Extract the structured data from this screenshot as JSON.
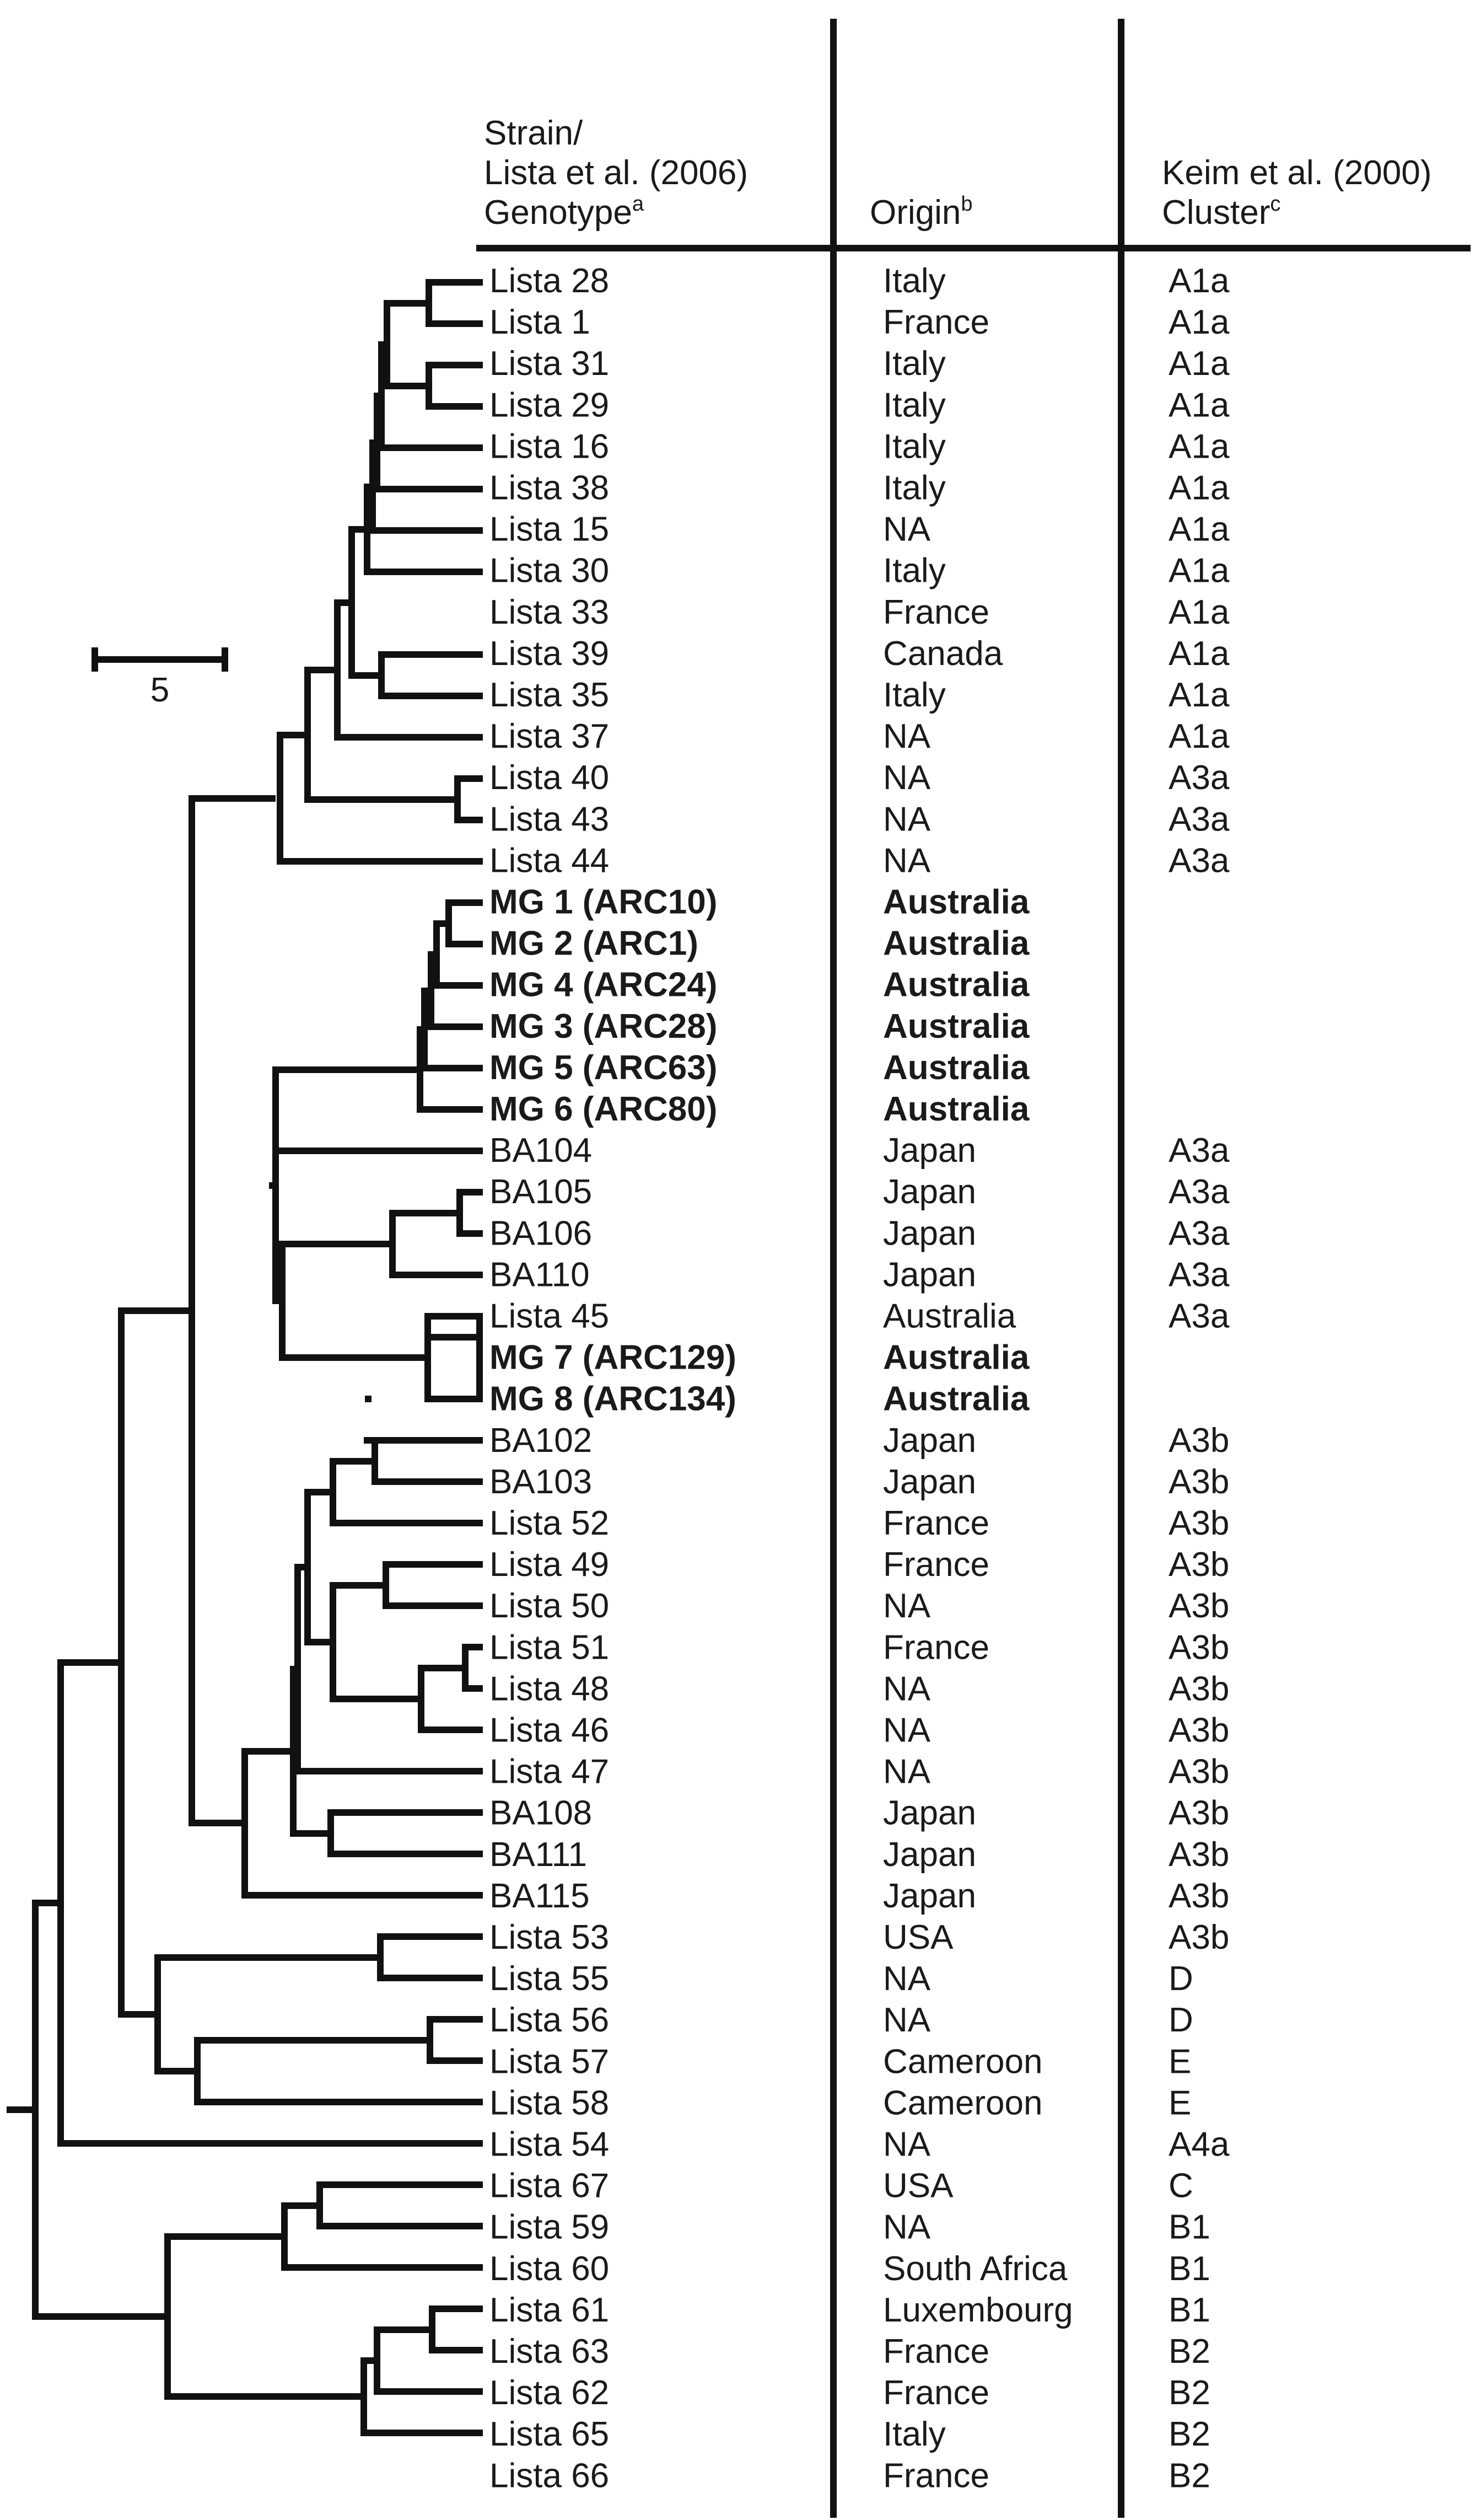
{
  "header": {
    "strain": [
      "Strain/",
      "Lista et al. (2006)",
      "Genotype"
    ],
    "strain_sup": "a",
    "origin": "Origin",
    "origin_sup": "b",
    "cluster": [
      "Keim et al. (2000)",
      "Cluster"
    ],
    "cluster_sup": "c"
  },
  "scale_label": "5",
  "rows": [
    {
      "strain": "Lista 28",
      "origin": "Italy",
      "cluster": "A1a",
      "bold": false
    },
    {
      "strain": "Lista 1",
      "origin": "France",
      "cluster": "A1a",
      "bold": false
    },
    {
      "strain": "Lista 31",
      "origin": "Italy",
      "cluster": "A1a",
      "bold": false
    },
    {
      "strain": "Lista 29",
      "origin": "Italy",
      "cluster": "A1a",
      "bold": false
    },
    {
      "strain": "Lista 16",
      "origin": "Italy",
      "cluster": "A1a",
      "bold": false
    },
    {
      "strain": "Lista 38",
      "origin": "Italy",
      "cluster": "A1a",
      "bold": false
    },
    {
      "strain": "Lista 15",
      "origin": "NA",
      "cluster": "A1a",
      "bold": false
    },
    {
      "strain": "Lista 30",
      "origin": "Italy",
      "cluster": "A1a",
      "bold": false
    },
    {
      "strain": "Lista 33",
      "origin": "France",
      "cluster": "A1a",
      "bold": false
    },
    {
      "strain": "Lista 39",
      "origin": "Canada",
      "cluster": "A1a",
      "bold": false
    },
    {
      "strain": "Lista 35",
      "origin": "Italy",
      "cluster": "A1a",
      "bold": false
    },
    {
      "strain": "Lista 37",
      "origin": "NA",
      "cluster": "A1a",
      "bold": false
    },
    {
      "strain": "Lista 40",
      "origin": "NA",
      "cluster": "A3a",
      "bold": false
    },
    {
      "strain": "Lista 43",
      "origin": "NA",
      "cluster": "A3a",
      "bold": false
    },
    {
      "strain": "Lista 44",
      "origin": "NA",
      "cluster": "A3a",
      "bold": false
    },
    {
      "strain": "MG 1 (ARC10)",
      "origin": "Australia",
      "cluster": "",
      "bold": true
    },
    {
      "strain": "MG 2 (ARC1)",
      "origin": "Australia",
      "cluster": "",
      "bold": true
    },
    {
      "strain": "MG 4 (ARC24)",
      "origin": "Australia",
      "cluster": "",
      "bold": true
    },
    {
      "strain": "MG 3 (ARC28)",
      "origin": "Australia",
      "cluster": "",
      "bold": true
    },
    {
      "strain": "MG 5 (ARC63)",
      "origin": "Australia",
      "cluster": "",
      "bold": true
    },
    {
      "strain": "MG 6 (ARC80)",
      "origin": "Australia",
      "cluster": "",
      "bold": true
    },
    {
      "strain": "BA104",
      "origin": "Japan",
      "cluster": "A3a",
      "bold": false
    },
    {
      "strain": "BA105",
      "origin": "Japan",
      "cluster": "A3a",
      "bold": false
    },
    {
      "strain": "BA106",
      "origin": "Japan",
      "cluster": "A3a",
      "bold": false
    },
    {
      "strain": "BA110",
      "origin": "Japan",
      "cluster": "A3a",
      "bold": false
    },
    {
      "strain": "Lista 45",
      "origin": "Australia",
      "cluster": "A3a",
      "bold": false
    },
    {
      "strain": "MG 7 (ARC129)",
      "origin": "Australia",
      "cluster": "",
      "bold": true
    },
    {
      "strain": "MG 8 (ARC134)",
      "origin": "Australia",
      "cluster": "",
      "bold": true
    },
    {
      "strain": "BA102",
      "origin": "Japan",
      "cluster": "A3b",
      "bold": false
    },
    {
      "strain": "BA103",
      "origin": "Japan",
      "cluster": "A3b",
      "bold": false
    },
    {
      "strain": "Lista 52",
      "origin": "France",
      "cluster": "A3b",
      "bold": false
    },
    {
      "strain": "Lista 49",
      "origin": "France",
      "cluster": "A3b",
      "bold": false
    },
    {
      "strain": "Lista 50",
      "origin": "NA",
      "cluster": "A3b",
      "bold": false
    },
    {
      "strain": "Lista 51",
      "origin": "France",
      "cluster": "A3b",
      "bold": false
    },
    {
      "strain": "Lista 48",
      "origin": "NA",
      "cluster": "A3b",
      "bold": false
    },
    {
      "strain": "Lista 46",
      "origin": "NA",
      "cluster": "A3b",
      "bold": false
    },
    {
      "strain": "Lista 47",
      "origin": "NA",
      "cluster": "A3b",
      "bold": false
    },
    {
      "strain": "BA108",
      "origin": "Japan",
      "cluster": "A3b",
      "bold": false
    },
    {
      "strain": "BA111",
      "origin": "Japan",
      "cluster": "A3b",
      "bold": false
    },
    {
      "strain": "BA115",
      "origin": "Japan",
      "cluster": "A3b",
      "bold": false
    },
    {
      "strain": "Lista 53",
      "origin": "USA",
      "cluster": "A3b",
      "bold": false
    },
    {
      "strain": "Lista 55",
      "origin": "NA",
      "cluster": "D",
      "bold": false
    },
    {
      "strain": "Lista 56",
      "origin": "NA",
      "cluster": "D",
      "bold": false
    },
    {
      "strain": "Lista 57",
      "origin": "Cameroon",
      "cluster": "E",
      "bold": false
    },
    {
      "strain": "Lista 58",
      "origin": "Cameroon",
      "cluster": "E",
      "bold": false
    },
    {
      "strain": "Lista 54",
      "origin": "NA",
      "cluster": "A4a",
      "bold": false
    },
    {
      "strain": "Lista 67",
      "origin": "USA",
      "cluster": "C",
      "bold": false
    },
    {
      "strain": "Lista 59",
      "origin": "NA",
      "cluster": "B1",
      "bold": false
    },
    {
      "strain": "Lista 60",
      "origin": "South Africa",
      "cluster": "B1",
      "bold": false
    },
    {
      "strain": "Lista 61",
      "origin": "Luxembourg",
      "cluster": "B1",
      "bold": false
    },
    {
      "strain": "Lista 63",
      "origin": "France",
      "cluster": "B2",
      "bold": false
    },
    {
      "strain": "Lista 62",
      "origin": "France",
      "cluster": "B2",
      "bold": false
    },
    {
      "strain": "Lista 65",
      "origin": "Italy",
      "cluster": "B2",
      "bold": false
    },
    {
      "strain": "Lista 66",
      "origin": "France",
      "cluster": "B2",
      "bold": false
    }
  ]
}
